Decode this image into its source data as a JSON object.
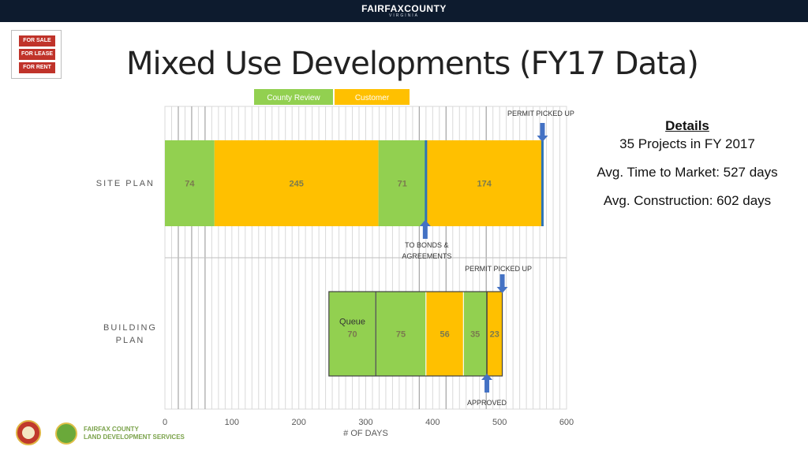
{
  "header": {
    "brand": "FAIRFAXCOUNTY",
    "brand_sub": "VIRGINIA"
  },
  "sign_icon": {
    "lines": [
      "FOR SALE",
      "FOR LEASE",
      "FOR RENT"
    ]
  },
  "title": "Mixed Use Developments (FY17 Data)",
  "details": {
    "heading": "Details",
    "line1": "35 Projects in FY 2017",
    "line2": "Avg. Time to Market: 527 days",
    "line3": "Avg. Construction: 602 days"
  },
  "footer": {
    "org_line1": "FAIRFAX COUNTY",
    "org_line2": "LAND DEVELOPMENT SERVICES"
  },
  "colors": {
    "county_review": "#92d050",
    "customer": "#ffc000",
    "marker": "#4472c4",
    "label": "#7a7a4e"
  },
  "chart_data": {
    "type": "bar",
    "orientation": "horizontal",
    "stacked": true,
    "xlabel": "# OF DAYS",
    "xlim": [
      0,
      600
    ],
    "xticks": [
      0,
      100,
      200,
      300,
      400,
      500,
      600
    ],
    "categories": [
      "SITE PLAN",
      "BUILDING PLAN"
    ],
    "legend": [
      {
        "name": "County Review",
        "color": "#92d050"
      },
      {
        "name": "Customer",
        "color": "#ffc000"
      }
    ],
    "legend_position": "top",
    "bars": [
      {
        "category": "SITE PLAN",
        "start": 0,
        "segments": [
          {
            "value": 74,
            "type": "County Review"
          },
          {
            "value": 245,
            "type": "Customer"
          },
          {
            "value": 71,
            "type": "County Review"
          },
          {
            "value": 174,
            "type": "Customer"
          }
        ]
      },
      {
        "category": "BUILDING PLAN",
        "start": 245,
        "segments": [
          {
            "value": 70,
            "type": "County Review",
            "label": "Queue"
          },
          {
            "value": 75,
            "type": "County Review"
          },
          {
            "value": 56,
            "type": "Customer"
          },
          {
            "value": 35,
            "type": "County Review"
          },
          {
            "value": 23,
            "type": "Customer"
          }
        ]
      }
    ],
    "annotations": [
      {
        "text": "PERMIT PICKED UP",
        "bar": "SITE PLAN",
        "x": 564,
        "direction": "down"
      },
      {
        "text": "TO BONDS & AGREEMENTS",
        "bar": "SITE PLAN",
        "x": 390,
        "direction": "up"
      },
      {
        "text": "PERMIT PICKED UP",
        "bar": "BUILDING PLAN",
        "x": 504,
        "direction": "down"
      },
      {
        "text": "APPROVED",
        "bar": "BUILDING PLAN",
        "x": 481,
        "direction": "up"
      }
    ]
  }
}
